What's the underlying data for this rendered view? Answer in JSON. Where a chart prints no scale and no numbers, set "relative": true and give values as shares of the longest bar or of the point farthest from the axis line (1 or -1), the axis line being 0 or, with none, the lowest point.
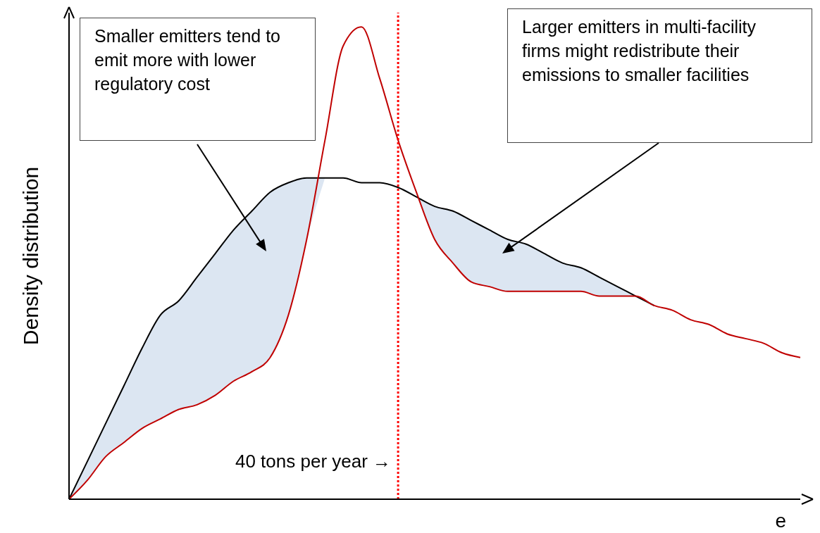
{
  "chart_data": {
    "type": "line",
    "relative": true,
    "ylabel": "Density distribution",
    "xlabel": "e",
    "categories": [
      null,
      null,
      null,
      null,
      null,
      null,
      null,
      null,
      null,
      null,
      null,
      null,
      null,
      null,
      null,
      null,
      null,
      null,
      null,
      null,
      null,
      null,
      null,
      null,
      null,
      null,
      null,
      null,
      null,
      null,
      null,
      null,
      null,
      null,
      null,
      null,
      null,
      null,
      null,
      null,
      null
    ],
    "series": [
      {
        "color": "#000000",
        "values": [
          0,
          0.08,
          0.16,
          0.24,
          0.32,
          0.39,
          0.42,
          0.47,
          0.52,
          0.57,
          0.61,
          0.65,
          0.67,
          0.68,
          0.68,
          0.68,
          0.67,
          0.67,
          0.66,
          0.64,
          0.62,
          0.61,
          0.59,
          0.57,
          0.55,
          0.54,
          0.52,
          0.5,
          0.49,
          0.47,
          0.45,
          0.43,
          0.41,
          null,
          null,
          null,
          null,
          null,
          null,
          null,
          null
        ],
        "lower": [
          0,
          0.04,
          0.09,
          0.12,
          0.15,
          0.17,
          0.19,
          0.2,
          0.22,
          0.25,
          0.27,
          0.3,
          0.39,
          0.55,
          0.68,
          null,
          null,
          null,
          0.66,
          0.64,
          0.55,
          0.5,
          0.46,
          0.45,
          0.44,
          0.44,
          0.44,
          0.44,
          0.44,
          0.43,
          0.43,
          0.43,
          0.41,
          null,
          null,
          null,
          null,
          null,
          null,
          null,
          null
        ],
        "upper": [
          0,
          0.08,
          0.16,
          0.24,
          0.32,
          0.39,
          0.42,
          0.47,
          0.52,
          0.57,
          0.61,
          0.65,
          0.67,
          0.68,
          0.68,
          null,
          null,
          null,
          0.66,
          0.64,
          0.62,
          0.61,
          0.59,
          0.57,
          0.55,
          0.54,
          0.52,
          0.5,
          0.49,
          0.47,
          0.45,
          0.43,
          0.41,
          null,
          null,
          null,
          null,
          null,
          null,
          null,
          null
        ]
      },
      {
        "color": "#c00000",
        "values": [
          0,
          0.04,
          0.09,
          0.12,
          0.15,
          0.17,
          0.19,
          0.2,
          0.22,
          0.25,
          0.27,
          0.3,
          0.39,
          0.55,
          0.76,
          0.96,
          1,
          0.89,
          0.76,
          0.65,
          0.55,
          0.5,
          0.46,
          0.45,
          0.44,
          0.44,
          0.44,
          0.44,
          0.44,
          0.43,
          0.43,
          0.43,
          0.41,
          0.4,
          0.38,
          0.37,
          0.35,
          0.34,
          0.33,
          0.31,
          0.3
        ]
      }
    ],
    "annotations": [
      "Smaller emitters tend to emit more with lower regulatory cost",
      "Larger emitters in multi-facility firms might redistribute their emissions to smaller facilities",
      "40 tons per year →"
    ],
    "legend": false,
    "grid": false
  }
}
